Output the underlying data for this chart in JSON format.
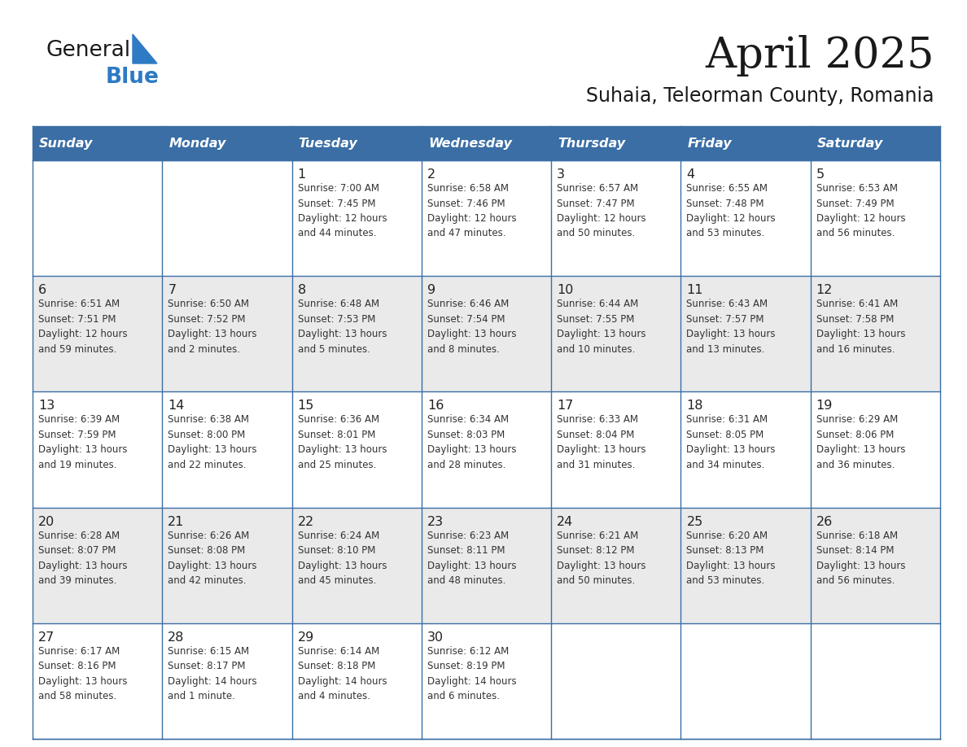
{
  "title": "April 2025",
  "subtitle": "Suhaia, Teleorman County, Romania",
  "header_bg_color": "#3A6EA5",
  "header_text_color": "#FFFFFF",
  "row_bg_odd": "#EAEAEA",
  "row_bg_even": "#FFFFFF",
  "text_color": "#333333",
  "border_color": "#3A6EA5",
  "logo_general_color": "#1a1a1a",
  "logo_blue_color": "#2E7AC4",
  "logo_triangle_color": "#2E7AC4",
  "days_of_week": [
    "Sunday",
    "Monday",
    "Tuesday",
    "Wednesday",
    "Thursday",
    "Friday",
    "Saturday"
  ],
  "weeks": [
    [
      {
        "day": "",
        "info": ""
      },
      {
        "day": "",
        "info": ""
      },
      {
        "day": "1",
        "info": "Sunrise: 7:00 AM\nSunset: 7:45 PM\nDaylight: 12 hours\nand 44 minutes."
      },
      {
        "day": "2",
        "info": "Sunrise: 6:58 AM\nSunset: 7:46 PM\nDaylight: 12 hours\nand 47 minutes."
      },
      {
        "day": "3",
        "info": "Sunrise: 6:57 AM\nSunset: 7:47 PM\nDaylight: 12 hours\nand 50 minutes."
      },
      {
        "day": "4",
        "info": "Sunrise: 6:55 AM\nSunset: 7:48 PM\nDaylight: 12 hours\nand 53 minutes."
      },
      {
        "day": "5",
        "info": "Sunrise: 6:53 AM\nSunset: 7:49 PM\nDaylight: 12 hours\nand 56 minutes."
      }
    ],
    [
      {
        "day": "6",
        "info": "Sunrise: 6:51 AM\nSunset: 7:51 PM\nDaylight: 12 hours\nand 59 minutes."
      },
      {
        "day": "7",
        "info": "Sunrise: 6:50 AM\nSunset: 7:52 PM\nDaylight: 13 hours\nand 2 minutes."
      },
      {
        "day": "8",
        "info": "Sunrise: 6:48 AM\nSunset: 7:53 PM\nDaylight: 13 hours\nand 5 minutes."
      },
      {
        "day": "9",
        "info": "Sunrise: 6:46 AM\nSunset: 7:54 PM\nDaylight: 13 hours\nand 8 minutes."
      },
      {
        "day": "10",
        "info": "Sunrise: 6:44 AM\nSunset: 7:55 PM\nDaylight: 13 hours\nand 10 minutes."
      },
      {
        "day": "11",
        "info": "Sunrise: 6:43 AM\nSunset: 7:57 PM\nDaylight: 13 hours\nand 13 minutes."
      },
      {
        "day": "12",
        "info": "Sunrise: 6:41 AM\nSunset: 7:58 PM\nDaylight: 13 hours\nand 16 minutes."
      }
    ],
    [
      {
        "day": "13",
        "info": "Sunrise: 6:39 AM\nSunset: 7:59 PM\nDaylight: 13 hours\nand 19 minutes."
      },
      {
        "day": "14",
        "info": "Sunrise: 6:38 AM\nSunset: 8:00 PM\nDaylight: 13 hours\nand 22 minutes."
      },
      {
        "day": "15",
        "info": "Sunrise: 6:36 AM\nSunset: 8:01 PM\nDaylight: 13 hours\nand 25 minutes."
      },
      {
        "day": "16",
        "info": "Sunrise: 6:34 AM\nSunset: 8:03 PM\nDaylight: 13 hours\nand 28 minutes."
      },
      {
        "day": "17",
        "info": "Sunrise: 6:33 AM\nSunset: 8:04 PM\nDaylight: 13 hours\nand 31 minutes."
      },
      {
        "day": "18",
        "info": "Sunrise: 6:31 AM\nSunset: 8:05 PM\nDaylight: 13 hours\nand 34 minutes."
      },
      {
        "day": "19",
        "info": "Sunrise: 6:29 AM\nSunset: 8:06 PM\nDaylight: 13 hours\nand 36 minutes."
      }
    ],
    [
      {
        "day": "20",
        "info": "Sunrise: 6:28 AM\nSunset: 8:07 PM\nDaylight: 13 hours\nand 39 minutes."
      },
      {
        "day": "21",
        "info": "Sunrise: 6:26 AM\nSunset: 8:08 PM\nDaylight: 13 hours\nand 42 minutes."
      },
      {
        "day": "22",
        "info": "Sunrise: 6:24 AM\nSunset: 8:10 PM\nDaylight: 13 hours\nand 45 minutes."
      },
      {
        "day": "23",
        "info": "Sunrise: 6:23 AM\nSunset: 8:11 PM\nDaylight: 13 hours\nand 48 minutes."
      },
      {
        "day": "24",
        "info": "Sunrise: 6:21 AM\nSunset: 8:12 PM\nDaylight: 13 hours\nand 50 minutes."
      },
      {
        "day": "25",
        "info": "Sunrise: 6:20 AM\nSunset: 8:13 PM\nDaylight: 13 hours\nand 53 minutes."
      },
      {
        "day": "26",
        "info": "Sunrise: 6:18 AM\nSunset: 8:14 PM\nDaylight: 13 hours\nand 56 minutes."
      }
    ],
    [
      {
        "day": "27",
        "info": "Sunrise: 6:17 AM\nSunset: 8:16 PM\nDaylight: 13 hours\nand 58 minutes."
      },
      {
        "day": "28",
        "info": "Sunrise: 6:15 AM\nSunset: 8:17 PM\nDaylight: 14 hours\nand 1 minute."
      },
      {
        "day": "29",
        "info": "Sunrise: 6:14 AM\nSunset: 8:18 PM\nDaylight: 14 hours\nand 4 minutes."
      },
      {
        "day": "30",
        "info": "Sunrise: 6:12 AM\nSunset: 8:19 PM\nDaylight: 14 hours\nand 6 minutes."
      },
      {
        "day": "",
        "info": ""
      },
      {
        "day": "",
        "info": ""
      },
      {
        "day": "",
        "info": ""
      }
    ]
  ]
}
